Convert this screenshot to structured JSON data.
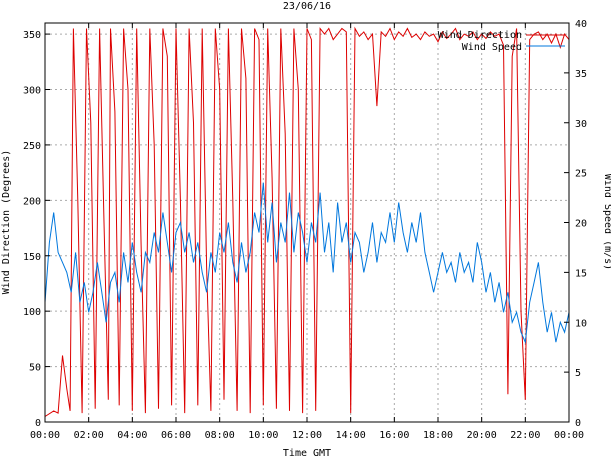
{
  "chart_data": {
    "type": "line",
    "title": "23/06/16",
    "xlabel": "Time GMT",
    "ylabel_left": "Wind Direction (Degrees)",
    "ylabel_right": "Wind Speed (m/s)",
    "x_ticks": [
      "00:00",
      "02:00",
      "04:00",
      "06:00",
      "08:00",
      "10:00",
      "12:00",
      "14:00",
      "16:00",
      "18:00",
      "20:00",
      "22:00",
      "00:00"
    ],
    "y_left_ticks": [
      "0",
      "50",
      "100",
      "150",
      "200",
      "250",
      "300",
      "350"
    ],
    "y_right_ticks": [
      "0",
      "5",
      "10",
      "15",
      "20",
      "25",
      "30",
      "35",
      "40"
    ],
    "xlim_hours": [
      0,
      24
    ],
    "ylim_left": [
      0,
      360
    ],
    "ylim_right": [
      0,
      40
    ],
    "grid": true,
    "legend_position": "top-right",
    "series": [
      {
        "name": "Wind Direction",
        "axis": "left",
        "color": "#dd0000",
        "points": [
          [
            0.0,
            5
          ],
          [
            0.4,
            10
          ],
          [
            0.6,
            8
          ],
          [
            0.8,
            60
          ],
          [
            1.0,
            30
          ],
          [
            1.15,
            10
          ],
          [
            1.3,
            355
          ],
          [
            1.5,
            200
          ],
          [
            1.7,
            8
          ],
          [
            1.9,
            355
          ],
          [
            2.1,
            270
          ],
          [
            2.3,
            12
          ],
          [
            2.5,
            355
          ],
          [
            2.7,
            180
          ],
          [
            2.9,
            20
          ],
          [
            3.0,
            355
          ],
          [
            3.2,
            280
          ],
          [
            3.4,
            15
          ],
          [
            3.6,
            355
          ],
          [
            3.8,
            300
          ],
          [
            4.0,
            10
          ],
          [
            4.2,
            355
          ],
          [
            4.4,
            160
          ],
          [
            4.6,
            8
          ],
          [
            4.8,
            355
          ],
          [
            5.0,
            250
          ],
          [
            5.2,
            12
          ],
          [
            5.4,
            355
          ],
          [
            5.6,
            330
          ],
          [
            5.8,
            15
          ],
          [
            6.0,
            355
          ],
          [
            6.2,
            200
          ],
          [
            6.4,
            8
          ],
          [
            6.6,
            355
          ],
          [
            6.8,
            270
          ],
          [
            7.0,
            15
          ],
          [
            7.2,
            355
          ],
          [
            7.4,
            140
          ],
          [
            7.6,
            10
          ],
          [
            7.8,
            355
          ],
          [
            8.0,
            300
          ],
          [
            8.2,
            20
          ],
          [
            8.4,
            355
          ],
          [
            8.6,
            200
          ],
          [
            8.8,
            10
          ],
          [
            9.0,
            355
          ],
          [
            9.2,
            310
          ],
          [
            9.4,
            8
          ],
          [
            9.6,
            355
          ],
          [
            9.8,
            345
          ],
          [
            10.0,
            15
          ],
          [
            10.2,
            355
          ],
          [
            10.4,
            220
          ],
          [
            10.6,
            12
          ],
          [
            10.8,
            355
          ],
          [
            11.0,
            260
          ],
          [
            11.2,
            10
          ],
          [
            11.4,
            355
          ],
          [
            11.6,
            300
          ],
          [
            11.8,
            8
          ],
          [
            12.0,
            355
          ],
          [
            12.2,
            345
          ],
          [
            12.4,
            10
          ],
          [
            12.6,
            355
          ],
          [
            12.8,
            350
          ],
          [
            13.0,
            355
          ],
          [
            13.2,
            345
          ],
          [
            13.4,
            350
          ],
          [
            13.6,
            355
          ],
          [
            13.8,
            352
          ],
          [
            14.0,
            8
          ],
          [
            14.2,
            355
          ],
          [
            14.4,
            348
          ],
          [
            14.6,
            352
          ],
          [
            14.8,
            345
          ],
          [
            15.0,
            350
          ],
          [
            15.2,
            285
          ],
          [
            15.4,
            352
          ],
          [
            15.6,
            348
          ],
          [
            15.8,
            355
          ],
          [
            16.0,
            345
          ],
          [
            16.2,
            352
          ],
          [
            16.4,
            348
          ],
          [
            16.6,
            355
          ],
          [
            16.8,
            347
          ],
          [
            17.0,
            350
          ],
          [
            17.2,
            345
          ],
          [
            17.4,
            352
          ],
          [
            17.6,
            348
          ],
          [
            17.8,
            350
          ],
          [
            18.0,
            343
          ],
          [
            18.2,
            352
          ],
          [
            18.4,
            346
          ],
          [
            18.6,
            350
          ],
          [
            18.8,
            355
          ],
          [
            19.0,
            345
          ],
          [
            19.2,
            350
          ],
          [
            19.4,
            348
          ],
          [
            19.6,
            352
          ],
          [
            19.8,
            345
          ],
          [
            20.0,
            350
          ],
          [
            20.2,
            346
          ],
          [
            20.4,
            352
          ],
          [
            20.6,
            348
          ],
          [
            20.8,
            350
          ],
          [
            21.0,
            340
          ],
          [
            21.2,
            25
          ],
          [
            21.4,
            330
          ],
          [
            21.6,
            355
          ],
          [
            21.8,
            100
          ],
          [
            22.0,
            20
          ],
          [
            22.2,
            345
          ],
          [
            22.4,
            350
          ],
          [
            22.6,
            352
          ],
          [
            22.8,
            345
          ],
          [
            23.0,
            350
          ],
          [
            23.2,
            342
          ],
          [
            23.4,
            350
          ],
          [
            23.6,
            338
          ],
          [
            23.8,
            350
          ],
          [
            24.0,
            345
          ]
        ]
      },
      {
        "name": "Wind Speed",
        "axis": "right",
        "color": "#0077dd",
        "points": [
          [
            0.0,
            12
          ],
          [
            0.2,
            18
          ],
          [
            0.4,
            21
          ],
          [
            0.6,
            17
          ],
          [
            0.8,
            16
          ],
          [
            1.0,
            15
          ],
          [
            1.2,
            13
          ],
          [
            1.4,
            17
          ],
          [
            1.6,
            12
          ],
          [
            1.8,
            14
          ],
          [
            2.0,
            11
          ],
          [
            2.2,
            13
          ],
          [
            2.4,
            16
          ],
          [
            2.6,
            13
          ],
          [
            2.8,
            10
          ],
          [
            3.0,
            14
          ],
          [
            3.2,
            15
          ],
          [
            3.4,
            12
          ],
          [
            3.6,
            17
          ],
          [
            3.8,
            14
          ],
          [
            4.0,
            18
          ],
          [
            4.2,
            15
          ],
          [
            4.4,
            13
          ],
          [
            4.6,
            17
          ],
          [
            4.8,
            16
          ],
          [
            5.0,
            19
          ],
          [
            5.2,
            17
          ],
          [
            5.4,
            21
          ],
          [
            5.6,
            18
          ],
          [
            5.8,
            15
          ],
          [
            6.0,
            19
          ],
          [
            6.2,
            20
          ],
          [
            6.4,
            17
          ],
          [
            6.6,
            19
          ],
          [
            6.8,
            16
          ],
          [
            7.0,
            18
          ],
          [
            7.2,
            15
          ],
          [
            7.4,
            13
          ],
          [
            7.6,
            17
          ],
          [
            7.8,
            15
          ],
          [
            8.0,
            19
          ],
          [
            8.2,
            17
          ],
          [
            8.4,
            20
          ],
          [
            8.6,
            16
          ],
          [
            8.8,
            14
          ],
          [
            9.0,
            18
          ],
          [
            9.2,
            15
          ],
          [
            9.4,
            17
          ],
          [
            9.6,
            21
          ],
          [
            9.8,
            19
          ],
          [
            10.0,
            24
          ],
          [
            10.2,
            18
          ],
          [
            10.4,
            22
          ],
          [
            10.6,
            16
          ],
          [
            10.8,
            20
          ],
          [
            11.0,
            18
          ],
          [
            11.2,
            23
          ],
          [
            11.4,
            17
          ],
          [
            11.6,
            21
          ],
          [
            11.8,
            19
          ],
          [
            12.0,
            16
          ],
          [
            12.2,
            20
          ],
          [
            12.4,
            18
          ],
          [
            12.6,
            23
          ],
          [
            12.8,
            17
          ],
          [
            13.0,
            20
          ],
          [
            13.2,
            15
          ],
          [
            13.4,
            22
          ],
          [
            13.6,
            18
          ],
          [
            13.8,
            20
          ],
          [
            14.0,
            16
          ],
          [
            14.2,
            19
          ],
          [
            14.4,
            18
          ],
          [
            14.6,
            15
          ],
          [
            14.8,
            17
          ],
          [
            15.0,
            20
          ],
          [
            15.2,
            16
          ],
          [
            15.4,
            19
          ],
          [
            15.6,
            18
          ],
          [
            15.8,
            21
          ],
          [
            16.0,
            18
          ],
          [
            16.2,
            22
          ],
          [
            16.4,
            19
          ],
          [
            16.6,
            17
          ],
          [
            16.8,
            20
          ],
          [
            17.0,
            18
          ],
          [
            17.2,
            21
          ],
          [
            17.4,
            17
          ],
          [
            17.6,
            15
          ],
          [
            17.8,
            13
          ],
          [
            18.0,
            15
          ],
          [
            18.2,
            17
          ],
          [
            18.4,
            15
          ],
          [
            18.6,
            16
          ],
          [
            18.8,
            14
          ],
          [
            19.0,
            17
          ],
          [
            19.2,
            15
          ],
          [
            19.4,
            16
          ],
          [
            19.6,
            14
          ],
          [
            19.8,
            18
          ],
          [
            20.0,
            16
          ],
          [
            20.2,
            13
          ],
          [
            20.4,
            15
          ],
          [
            20.6,
            12
          ],
          [
            20.8,
            14
          ],
          [
            21.0,
            11
          ],
          [
            21.2,
            13
          ],
          [
            21.4,
            10
          ],
          [
            21.6,
            11
          ],
          [
            21.8,
            9
          ],
          [
            22.0,
            8
          ],
          [
            22.2,
            12
          ],
          [
            22.4,
            14
          ],
          [
            22.6,
            16
          ],
          [
            22.8,
            12
          ],
          [
            23.0,
            9
          ],
          [
            23.2,
            11
          ],
          [
            23.4,
            8
          ],
          [
            23.6,
            10
          ],
          [
            23.8,
            9
          ],
          [
            24.0,
            11
          ]
        ]
      }
    ]
  }
}
